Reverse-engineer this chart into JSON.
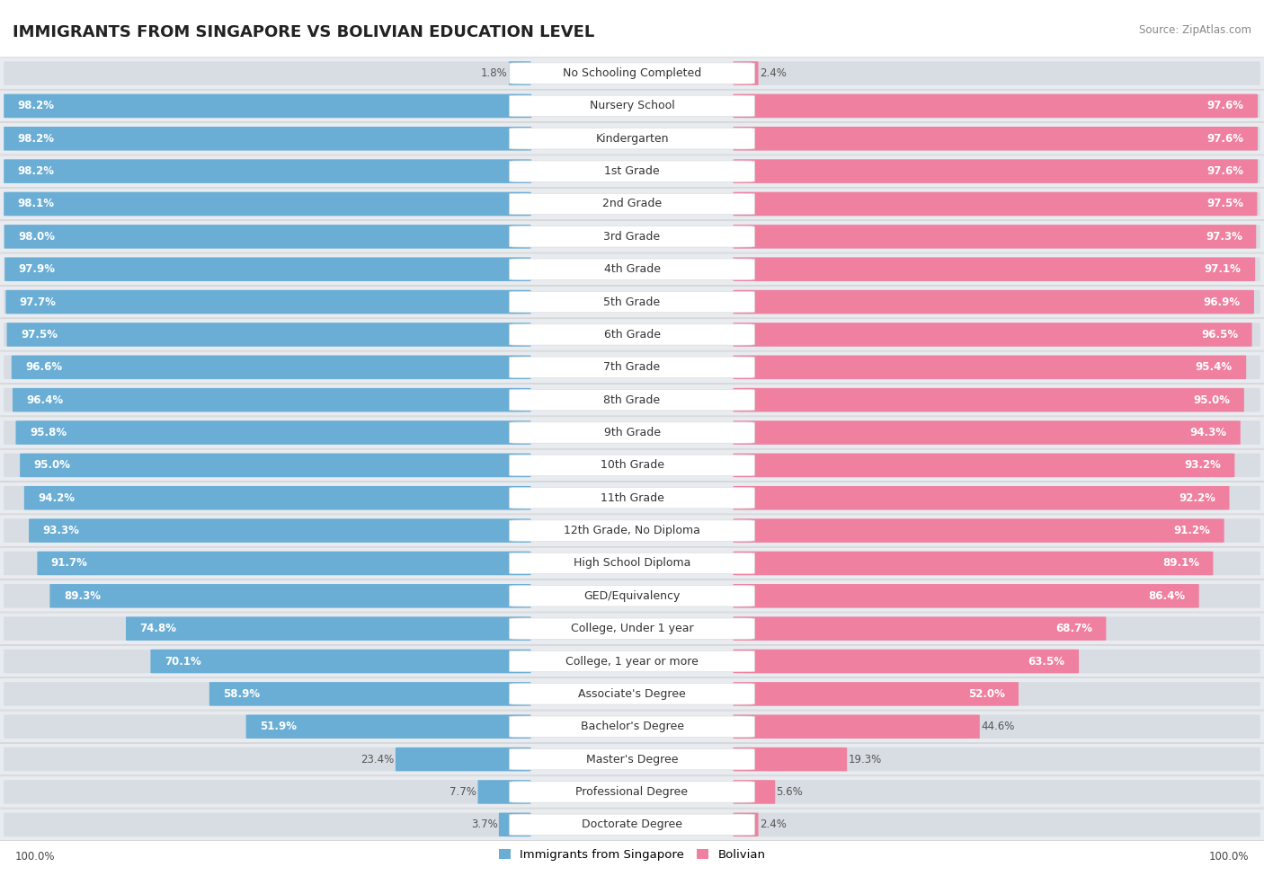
{
  "title": "IMMIGRANTS FROM SINGAPORE VS BOLIVIAN EDUCATION LEVEL",
  "source": "Source: ZipAtlas.com",
  "categories": [
    "No Schooling Completed",
    "Nursery School",
    "Kindergarten",
    "1st Grade",
    "2nd Grade",
    "3rd Grade",
    "4th Grade",
    "5th Grade",
    "6th Grade",
    "7th Grade",
    "8th Grade",
    "9th Grade",
    "10th Grade",
    "11th Grade",
    "12th Grade, No Diploma",
    "High School Diploma",
    "GED/Equivalency",
    "College, Under 1 year",
    "College, 1 year or more",
    "Associate's Degree",
    "Bachelor's Degree",
    "Master's Degree",
    "Professional Degree",
    "Doctorate Degree"
  ],
  "singapore_values": [
    1.8,
    98.2,
    98.2,
    98.2,
    98.1,
    98.0,
    97.9,
    97.7,
    97.5,
    96.6,
    96.4,
    95.8,
    95.0,
    94.2,
    93.3,
    91.7,
    89.3,
    74.8,
    70.1,
    58.9,
    51.9,
    23.4,
    7.7,
    3.7
  ],
  "bolivian_values": [
    2.4,
    97.6,
    97.6,
    97.6,
    97.5,
    97.3,
    97.1,
    96.9,
    96.5,
    95.4,
    95.0,
    94.3,
    93.2,
    92.2,
    91.2,
    89.1,
    86.4,
    68.7,
    63.5,
    52.0,
    44.6,
    19.3,
    5.6,
    2.4
  ],
  "singapore_color": "#6aaed6",
  "bolivian_color": "#f080a0",
  "row_bg_color": "#e8ecf0",
  "label_fontsize": 9.0,
  "value_fontsize": 8.5,
  "title_fontsize": 13,
  "background_color": "#ffffff",
  "legend_singapore": "Immigrants from Singapore",
  "legend_bolivian": "Bolivian"
}
